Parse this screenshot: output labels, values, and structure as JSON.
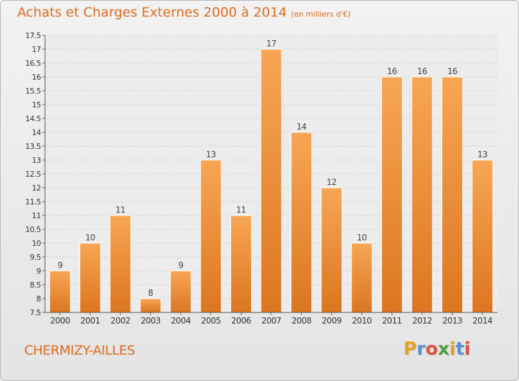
{
  "chart_data": {
    "type": "bar",
    "title": "Achats et Charges Externes 2000 à 2014",
    "unit": "(en milliers d'€)",
    "categories": [
      "2000",
      "2001",
      "2002",
      "2003",
      "2004",
      "2005",
      "2006",
      "2007",
      "2008",
      "2009",
      "2010",
      "2011",
      "2012",
      "2013",
      "2014"
    ],
    "values": [
      9,
      10,
      11,
      8,
      9,
      13,
      11,
      17,
      14,
      12,
      10,
      16,
      16,
      16,
      13
    ],
    "value_labels": [
      "9",
      "10",
      "11",
      "8",
      "9",
      "13",
      "11",
      "17",
      "14",
      "12",
      "10",
      "16",
      "16",
      "16",
      "13"
    ],
    "ylim": [
      7.5,
      17.5
    ],
    "yticks": [
      7.5,
      8,
      8.5,
      9,
      9.5,
      10,
      10.5,
      11,
      11.5,
      12,
      12.5,
      13,
      13.5,
      14,
      14.5,
      15,
      15.5,
      16,
      16.5,
      17,
      17.5
    ],
    "ytick_labels": [
      "7.5",
      "8",
      "8.5",
      "9",
      "9.5",
      "10",
      "10.5",
      "11",
      "11.5",
      "12",
      "12.5",
      "13",
      "13.5",
      "14",
      "14.5",
      "15",
      "15.5",
      "16",
      "16.5",
      "17",
      "17.5"
    ],
    "grid": true,
    "bar_color": "#f0923a"
  },
  "footer": {
    "commune": "CHERMIZY-AILLES"
  },
  "logo": {
    "letters": [
      "P",
      "r",
      "o",
      "x",
      "i",
      "t",
      "i"
    ],
    "colors": [
      "#e8a020",
      "#5a8fd0",
      "#e05040",
      "#4aa040",
      "#e8a020",
      "#5a8fd0",
      "#e05040"
    ]
  }
}
